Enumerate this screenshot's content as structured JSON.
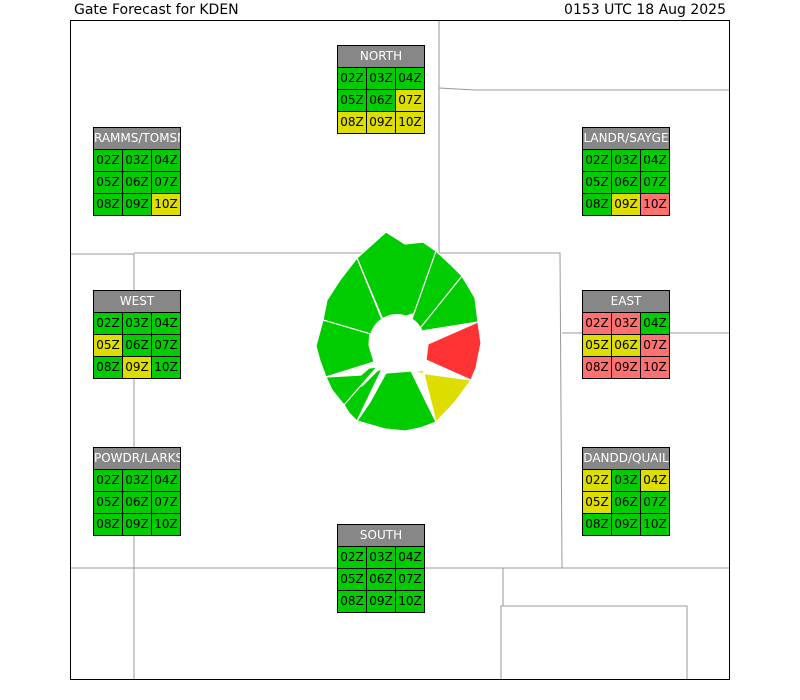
{
  "header": {
    "title": "Gate Forecast for KDEN",
    "timestamp": "0153 UTC 18 Aug 2025"
  },
  "colors": {
    "good": "#00cc00",
    "moderate": "#dddd00",
    "impacted": "#ff3333",
    "impacted_cell": "#ff7070",
    "gate_header": "#878787"
  },
  "gates": [
    {
      "id": "north",
      "name": "NORTH",
      "cells": [
        {
          "label": "02Z",
          "status": "good"
        },
        {
          "label": "03Z",
          "status": "good"
        },
        {
          "label": "04Z",
          "status": "good"
        },
        {
          "label": "05Z",
          "status": "good"
        },
        {
          "label": "06Z",
          "status": "good"
        },
        {
          "label": "07Z",
          "status": "moderate"
        },
        {
          "label": "08Z",
          "status": "moderate"
        },
        {
          "label": "09Z",
          "status": "moderate"
        },
        {
          "label": "10Z",
          "status": "moderate"
        }
      ]
    },
    {
      "id": "ramms-tomsn",
      "name": "RAMMS/TOMSN",
      "cells": [
        {
          "label": "02Z",
          "status": "good"
        },
        {
          "label": "03Z",
          "status": "good"
        },
        {
          "label": "04Z",
          "status": "good"
        },
        {
          "label": "05Z",
          "status": "good"
        },
        {
          "label": "06Z",
          "status": "good"
        },
        {
          "label": "07Z",
          "status": "good"
        },
        {
          "label": "08Z",
          "status": "good"
        },
        {
          "label": "09Z",
          "status": "good"
        },
        {
          "label": "10Z",
          "status": "moderate"
        }
      ]
    },
    {
      "id": "landr-sayge",
      "name": "LANDR/SAYGE",
      "cells": [
        {
          "label": "02Z",
          "status": "good"
        },
        {
          "label": "03Z",
          "status": "good"
        },
        {
          "label": "04Z",
          "status": "good"
        },
        {
          "label": "05Z",
          "status": "good"
        },
        {
          "label": "06Z",
          "status": "good"
        },
        {
          "label": "07Z",
          "status": "good"
        },
        {
          "label": "08Z",
          "status": "good"
        },
        {
          "label": "09Z",
          "status": "moderate"
        },
        {
          "label": "10Z",
          "status": "impacted"
        }
      ]
    },
    {
      "id": "west",
      "name": "WEST",
      "cells": [
        {
          "label": "02Z",
          "status": "good"
        },
        {
          "label": "03Z",
          "status": "good"
        },
        {
          "label": "04Z",
          "status": "good"
        },
        {
          "label": "05Z",
          "status": "moderate"
        },
        {
          "label": "06Z",
          "status": "good"
        },
        {
          "label": "07Z",
          "status": "good"
        },
        {
          "label": "08Z",
          "status": "good"
        },
        {
          "label": "09Z",
          "status": "moderate"
        },
        {
          "label": "10Z",
          "status": "good"
        }
      ]
    },
    {
      "id": "east",
      "name": "EAST",
      "cells": [
        {
          "label": "02Z",
          "status": "impacted"
        },
        {
          "label": "03Z",
          "status": "impacted"
        },
        {
          "label": "04Z",
          "status": "good"
        },
        {
          "label": "05Z",
          "status": "moderate"
        },
        {
          "label": "06Z",
          "status": "moderate"
        },
        {
          "label": "07Z",
          "status": "impacted"
        },
        {
          "label": "08Z",
          "status": "impacted"
        },
        {
          "label": "09Z",
          "status": "impacted"
        },
        {
          "label": "10Z",
          "status": "impacted"
        }
      ]
    },
    {
      "id": "powdr-larks",
      "name": "POWDR/LARKS",
      "cells": [
        {
          "label": "02Z",
          "status": "good"
        },
        {
          "label": "03Z",
          "status": "good"
        },
        {
          "label": "04Z",
          "status": "good"
        },
        {
          "label": "05Z",
          "status": "good"
        },
        {
          "label": "06Z",
          "status": "good"
        },
        {
          "label": "07Z",
          "status": "good"
        },
        {
          "label": "08Z",
          "status": "good"
        },
        {
          "label": "09Z",
          "status": "good"
        },
        {
          "label": "10Z",
          "status": "good"
        }
      ]
    },
    {
      "id": "dandd-quail",
      "name": "DANDD/QUAIL",
      "cells": [
        {
          "label": "02Z",
          "status": "moderate"
        },
        {
          "label": "03Z",
          "status": "good"
        },
        {
          "label": "04Z",
          "status": "moderate"
        },
        {
          "label": "05Z",
          "status": "moderate"
        },
        {
          "label": "06Z",
          "status": "good"
        },
        {
          "label": "07Z",
          "status": "good"
        },
        {
          "label": "08Z",
          "status": "good"
        },
        {
          "label": "09Z",
          "status": "good"
        },
        {
          "label": "10Z",
          "status": "good"
        }
      ]
    },
    {
      "id": "south",
      "name": "SOUTH",
      "cells": [
        {
          "label": "02Z",
          "status": "good"
        },
        {
          "label": "03Z",
          "status": "good"
        },
        {
          "label": "04Z",
          "status": "good"
        },
        {
          "label": "05Z",
          "status": "good"
        },
        {
          "label": "06Z",
          "status": "good"
        },
        {
          "label": "07Z",
          "status": "good"
        },
        {
          "label": "08Z",
          "status": "good"
        },
        {
          "label": "09Z",
          "status": "good"
        },
        {
          "label": "10Z",
          "status": "good"
        }
      ]
    }
  ],
  "center_ring": [
    {
      "sector": "north-north-west",
      "status": "good"
    },
    {
      "sector": "north-north-east",
      "status": "good"
    },
    {
      "sector": "north-east",
      "status": "good"
    },
    {
      "sector": "east",
      "status": "impacted"
    },
    {
      "sector": "south-east",
      "status": "moderate"
    },
    {
      "sector": "south-south-east",
      "status": "good"
    },
    {
      "sector": "south-south-west",
      "status": "good"
    },
    {
      "sector": "south-west",
      "status": "good"
    },
    {
      "sector": "west",
      "status": "good"
    },
    {
      "sector": "north-west",
      "status": "good"
    }
  ]
}
